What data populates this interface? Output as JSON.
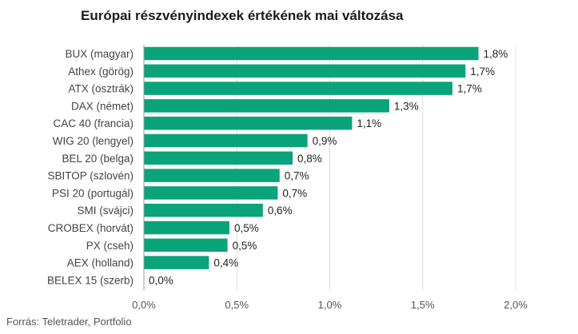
{
  "chart_data": {
    "type": "bar",
    "orientation": "horizontal",
    "title": "Európai részvényindexek értékének mai változása",
    "source": "Forrás: Teletrader, Portfolio",
    "categories": [
      "BUX (magyar)",
      "Athex (görög)",
      "ATX (osztrák)",
      "DAX (német)",
      "CAC 40 (francia)",
      "WIG 20 (lengyel)",
      "BEL 20 (belga)",
      "SBITOP (szlovén)",
      "PSI 20 (portugál)",
      "SMI (svájci)",
      "CROBEX (horvát)",
      "PX (cseh)",
      "AEX (holland)",
      "BELEX 15 (szerb)"
    ],
    "values": [
      1.8,
      1.73,
      1.66,
      1.32,
      1.12,
      0.88,
      0.8,
      0.73,
      0.72,
      0.64,
      0.46,
      0.45,
      0.35,
      0.0
    ],
    "data_labels": [
      "1,8%",
      "1,7%",
      "1,7%",
      "1,3%",
      "1,1%",
      "0,9%",
      "0,8%",
      "0,7%",
      "0,7%",
      "0,6%",
      "0,5%",
      "0,5%",
      "0,4%",
      "0,0%"
    ],
    "xlim": [
      0,
      2.0
    ],
    "x_ticks": [
      0,
      0.5,
      1.0,
      1.5,
      2.0
    ],
    "x_tick_labels": [
      "0,0%",
      "0,5%",
      "1,0%",
      "1,5%",
      "2,0%"
    ],
    "grid": true,
    "bar_color": "#0aa37a",
    "grid_color": "#dddddd",
    "axis_color": "#999999"
  }
}
